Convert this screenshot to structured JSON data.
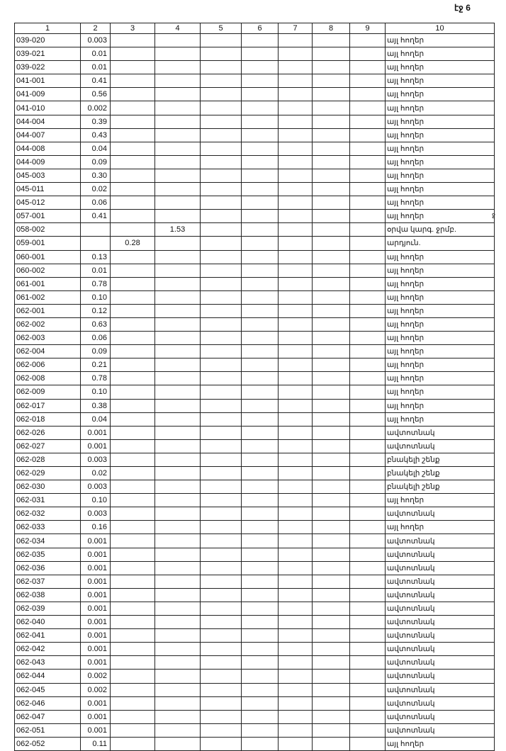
{
  "page_label": "էջ 6",
  "margin_mark": "ջ",
  "headers": [
    "1",
    "2",
    "3",
    "4",
    "5",
    "6",
    "7",
    "8",
    "9",
    "10"
  ],
  "rows": [
    [
      "039-020",
      "0.003",
      "",
      "",
      "այլ հողեր"
    ],
    [
      "039-021",
      "0.01",
      "",
      "",
      "այլ հողեր"
    ],
    [
      "039-022",
      "0.01",
      "",
      "",
      "այլ հողեր"
    ],
    [
      "041-001",
      "0.41",
      "",
      "",
      "այլ հողեր"
    ],
    [
      "041-009",
      "0.56",
      "",
      "",
      "այլ հողեր"
    ],
    [
      "041-010",
      "0.002",
      "",
      "",
      "այլ հողեր"
    ],
    [
      "044-004",
      "0.39",
      "",
      "",
      "այլ հողեր"
    ],
    [
      "044-007",
      "0.43",
      "",
      "",
      "այլ հողեր"
    ],
    [
      "044-008",
      "0.04",
      "",
      "",
      "այլ հողեր"
    ],
    [
      "044-009",
      "0.09",
      "",
      "",
      "այլ հողեր"
    ],
    [
      "045-003",
      "0.30",
      "",
      "",
      "այլ հողեր"
    ],
    [
      "045-011",
      "0.02",
      "",
      "",
      "այլ հողեր"
    ],
    [
      "045-012",
      "0.06",
      "",
      "",
      "այլ հողեր"
    ],
    [
      "057-001",
      "0.41",
      "",
      "",
      "այլ հողեր"
    ],
    [
      "058-002",
      "",
      "",
      "1.53",
      "օրվա կարգ. ջրմբ."
    ],
    [
      "059-001",
      "",
      "0.28",
      "",
      "արդյուն."
    ],
    [
      "060-001",
      "0.13",
      "",
      "",
      "այլ հողեր"
    ],
    [
      "060-002",
      "0.01",
      "",
      "",
      "այլ հողեր"
    ],
    [
      "061-001",
      "0.78",
      "",
      "",
      "այլ հողեր"
    ],
    [
      "061-002",
      "0.10",
      "",
      "",
      "այլ հողեր"
    ],
    [
      "062-001",
      "0.12",
      "",
      "",
      "այլ հողեր"
    ],
    [
      "062-002",
      "0.63",
      "",
      "",
      "այլ հողեր"
    ],
    [
      "062-003",
      "0.06",
      "",
      "",
      "այլ հողեր"
    ],
    [
      "062-004",
      "0.09",
      "",
      "",
      "այլ հողեր"
    ],
    [
      "062-006",
      "0.21",
      "",
      "",
      "այլ հողեր"
    ],
    [
      "062-008",
      "0.78",
      "",
      "",
      "այլ հողեր"
    ],
    [
      "062-009",
      "0.10",
      "",
      "",
      "այլ հողեր"
    ],
    [
      "062-017",
      "0.38",
      "",
      "",
      "այլ հողեր"
    ],
    [
      "062-018",
      "0.04",
      "",
      "",
      "այլ հողեր"
    ],
    [
      "062-026",
      "0.001",
      "",
      "",
      "ավտոտնակ"
    ],
    [
      "062-027",
      "0.001",
      "",
      "",
      "ավտոտնակ"
    ],
    [
      "062-028",
      "0.003",
      "",
      "",
      "բնակելի շենք"
    ],
    [
      "062-029",
      "0.02",
      "",
      "",
      "բնակելի շենք"
    ],
    [
      "062-030",
      "0.003",
      "",
      "",
      "բնակելի շենք"
    ],
    [
      "062-031",
      "0.10",
      "",
      "",
      "այլ հողեր"
    ],
    [
      "062-032",
      "0.003",
      "",
      "",
      "ավտոտնակ"
    ],
    [
      "062-033",
      "0.16",
      "",
      "",
      "այլ հողեր"
    ],
    [
      "062-034",
      "0.001",
      "",
      "",
      "ավտոտնակ"
    ],
    [
      "062-035",
      "0.001",
      "",
      "",
      "ավտոտնակ"
    ],
    [
      "062-036",
      "0.001",
      "",
      "",
      "ավտոտնակ"
    ],
    [
      "062-037",
      "0.001",
      "",
      "",
      "ավտոտնակ"
    ],
    [
      "062-038",
      "0.001",
      "",
      "",
      "ավտոտնակ"
    ],
    [
      "062-039",
      "0.001",
      "",
      "",
      "ավտոտնակ"
    ],
    [
      "062-040",
      "0.001",
      "",
      "",
      "ավտոտնակ"
    ],
    [
      "062-041",
      "0.001",
      "",
      "",
      "ավտոտնակ"
    ],
    [
      "062-042",
      "0.001",
      "",
      "",
      "ավտոտնակ"
    ],
    [
      "062-043",
      "0.001",
      "",
      "",
      "ավտոտնակ"
    ],
    [
      "062-044",
      "0.002",
      "",
      "",
      "ավտոտնակ"
    ],
    [
      "062-045",
      "0.002",
      "",
      "",
      "ավտոտնակ"
    ],
    [
      "062-046",
      "0.001",
      "",
      "",
      "ավտոտնակ"
    ],
    [
      "062-047",
      "0.001",
      "",
      "",
      "ավտոտնակ"
    ],
    [
      "062-051",
      "0.001",
      "",
      "",
      "ավտոտնակ"
    ],
    [
      "062-052",
      "0.11",
      "",
      "",
      "այլ հողեր"
    ]
  ]
}
